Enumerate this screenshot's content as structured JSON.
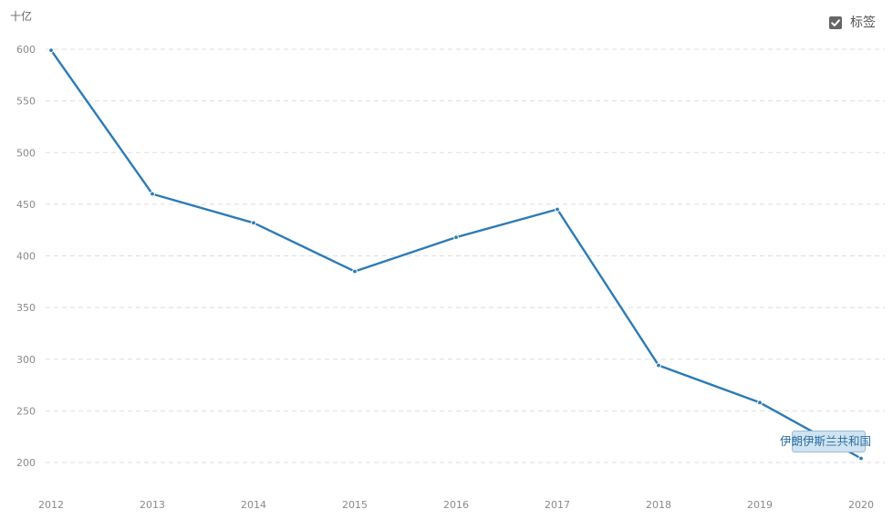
{
  "chart_data": {
    "type": "line",
    "unit_label": "十亿",
    "x": [
      "2012",
      "2013",
      "2014",
      "2015",
      "2016",
      "2017",
      "2018",
      "2019",
      "2020"
    ],
    "series": [
      {
        "name": "伊朗伊斯兰共和国",
        "values": [
          599,
          460,
          432,
          385,
          418,
          445,
          294,
          258,
          204
        ],
        "color": "#2c7bb6"
      }
    ],
    "y_ticks": [
      "200",
      "250",
      "300",
      "350",
      "400",
      "450",
      "500",
      "550",
      "600"
    ],
    "ylim": [
      200,
      600
    ],
    "grid": true,
    "grid_style": "dashed-horizontal",
    "legend_toggle": {
      "label": "标签",
      "checked": true
    }
  }
}
